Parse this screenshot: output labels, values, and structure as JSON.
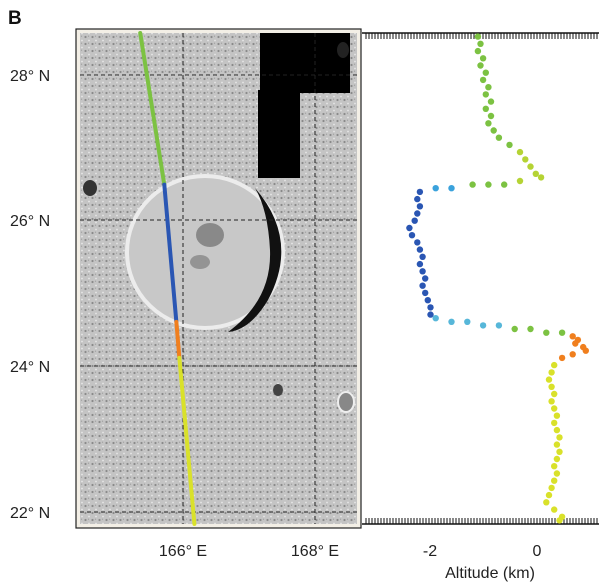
{
  "panel_label": "B",
  "colors": {
    "track_green": "#7cc242",
    "track_blue": "#2a56b3",
    "track_orange": "#f07f1e",
    "track_yellow": "#d9e12a",
    "map_bg": "#bdbdbd",
    "crater_shadow": "#1a1a1a",
    "gap_fill": "#000000"
  },
  "chart_data": [
    {
      "type": "map",
      "y_ticks": [
        "28° N",
        "26° N",
        "24° N",
        "22° N"
      ],
      "y_values": [
        28,
        26,
        24,
        22
      ],
      "x_ticks": [
        "166° E",
        "168° E"
      ],
      "x_values": [
        166,
        168
      ],
      "xlim": [
        164.6,
        169.2
      ],
      "ylim": [
        21.8,
        28.6
      ],
      "grid": true,
      "track": [
        {
          "segment": "green",
          "from": [
            165.6,
            28.6
          ],
          "to": [
            166.0,
            26.5
          ]
        },
        {
          "segment": "blue",
          "from": [
            166.0,
            26.5
          ],
          "to": [
            166.2,
            24.6
          ]
        },
        {
          "segment": "orange",
          "from": [
            166.2,
            24.6
          ],
          "to": [
            166.25,
            24.1
          ]
        },
        {
          "segment": "yellow",
          "from": [
            166.25,
            24.1
          ],
          "to": [
            166.5,
            21.8
          ]
        }
      ]
    },
    {
      "type": "scatter",
      "xlabel": "Altitude (km)",
      "x_ticks": [
        "-2",
        "0"
      ],
      "x_values": [
        -2,
        0
      ],
      "xlim": [
        -3.3,
        1.2
      ],
      "ylim": [
        21.8,
        28.6
      ],
      "points": [
        [
          -1.1,
          28.55
        ],
        [
          -1.05,
          28.45
        ],
        [
          -1.1,
          28.35
        ],
        [
          -1.0,
          28.25
        ],
        [
          -1.05,
          28.15
        ],
        [
          -0.95,
          28.05
        ],
        [
          -1.0,
          27.95
        ],
        [
          -0.9,
          27.85
        ],
        [
          -0.95,
          27.75
        ],
        [
          -0.85,
          27.65
        ],
        [
          -0.95,
          27.55
        ],
        [
          -0.85,
          27.45
        ],
        [
          -0.9,
          27.35
        ],
        [
          -0.8,
          27.25
        ],
        [
          -0.7,
          27.15
        ],
        [
          -0.5,
          27.05
        ],
        [
          -0.3,
          26.95
        ],
        [
          -0.2,
          26.85
        ],
        [
          -0.1,
          26.75
        ],
        [
          0.0,
          26.65
        ],
        [
          0.1,
          26.6
        ],
        [
          -0.3,
          26.55
        ],
        [
          -0.6,
          26.5
        ],
        [
          -0.9,
          26.5
        ],
        [
          -1.2,
          26.5
        ],
        [
          -1.6,
          26.45
        ],
        [
          -1.9,
          26.45
        ],
        [
          -2.2,
          26.4
        ],
        [
          -2.25,
          26.3
        ],
        [
          -2.2,
          26.2
        ],
        [
          -2.25,
          26.1
        ],
        [
          -2.3,
          26.0
        ],
        [
          -2.4,
          25.9
        ],
        [
          -2.35,
          25.8
        ],
        [
          -2.25,
          25.7
        ],
        [
          -2.2,
          25.6
        ],
        [
          -2.15,
          25.5
        ],
        [
          -2.2,
          25.4
        ],
        [
          -2.15,
          25.3
        ],
        [
          -2.1,
          25.2
        ],
        [
          -2.15,
          25.1
        ],
        [
          -2.1,
          25.0
        ],
        [
          -2.05,
          24.9
        ],
        [
          -2.0,
          24.8
        ],
        [
          -2.0,
          24.7
        ],
        [
          -1.9,
          24.65
        ],
        [
          -1.6,
          24.6
        ],
        [
          -1.3,
          24.6
        ],
        [
          -1.0,
          24.55
        ],
        [
          -0.7,
          24.55
        ],
        [
          -0.4,
          24.5
        ],
        [
          -0.1,
          24.5
        ],
        [
          0.2,
          24.45
        ],
        [
          0.5,
          24.45
        ],
        [
          0.7,
          24.4
        ],
        [
          0.8,
          24.35
        ],
        [
          0.75,
          24.3
        ],
        [
          0.9,
          24.25
        ],
        [
          0.95,
          24.2
        ],
        [
          0.7,
          24.15
        ],
        [
          0.5,
          24.1
        ],
        [
          0.35,
          24.0
        ],
        [
          0.3,
          23.9
        ],
        [
          0.25,
          23.8
        ],
        [
          0.3,
          23.7
        ],
        [
          0.35,
          23.6
        ],
        [
          0.3,
          23.5
        ],
        [
          0.35,
          23.4
        ],
        [
          0.4,
          23.3
        ],
        [
          0.35,
          23.2
        ],
        [
          0.4,
          23.1
        ],
        [
          0.45,
          23.0
        ],
        [
          0.4,
          22.9
        ],
        [
          0.45,
          22.8
        ],
        [
          0.4,
          22.7
        ],
        [
          0.35,
          22.6
        ],
        [
          0.4,
          22.5
        ],
        [
          0.35,
          22.4
        ],
        [
          0.3,
          22.3
        ],
        [
          0.25,
          22.2
        ],
        [
          0.2,
          22.1
        ],
        [
          0.35,
          22.0
        ],
        [
          0.5,
          21.9
        ],
        [
          0.45,
          21.85
        ]
      ]
    }
  ]
}
